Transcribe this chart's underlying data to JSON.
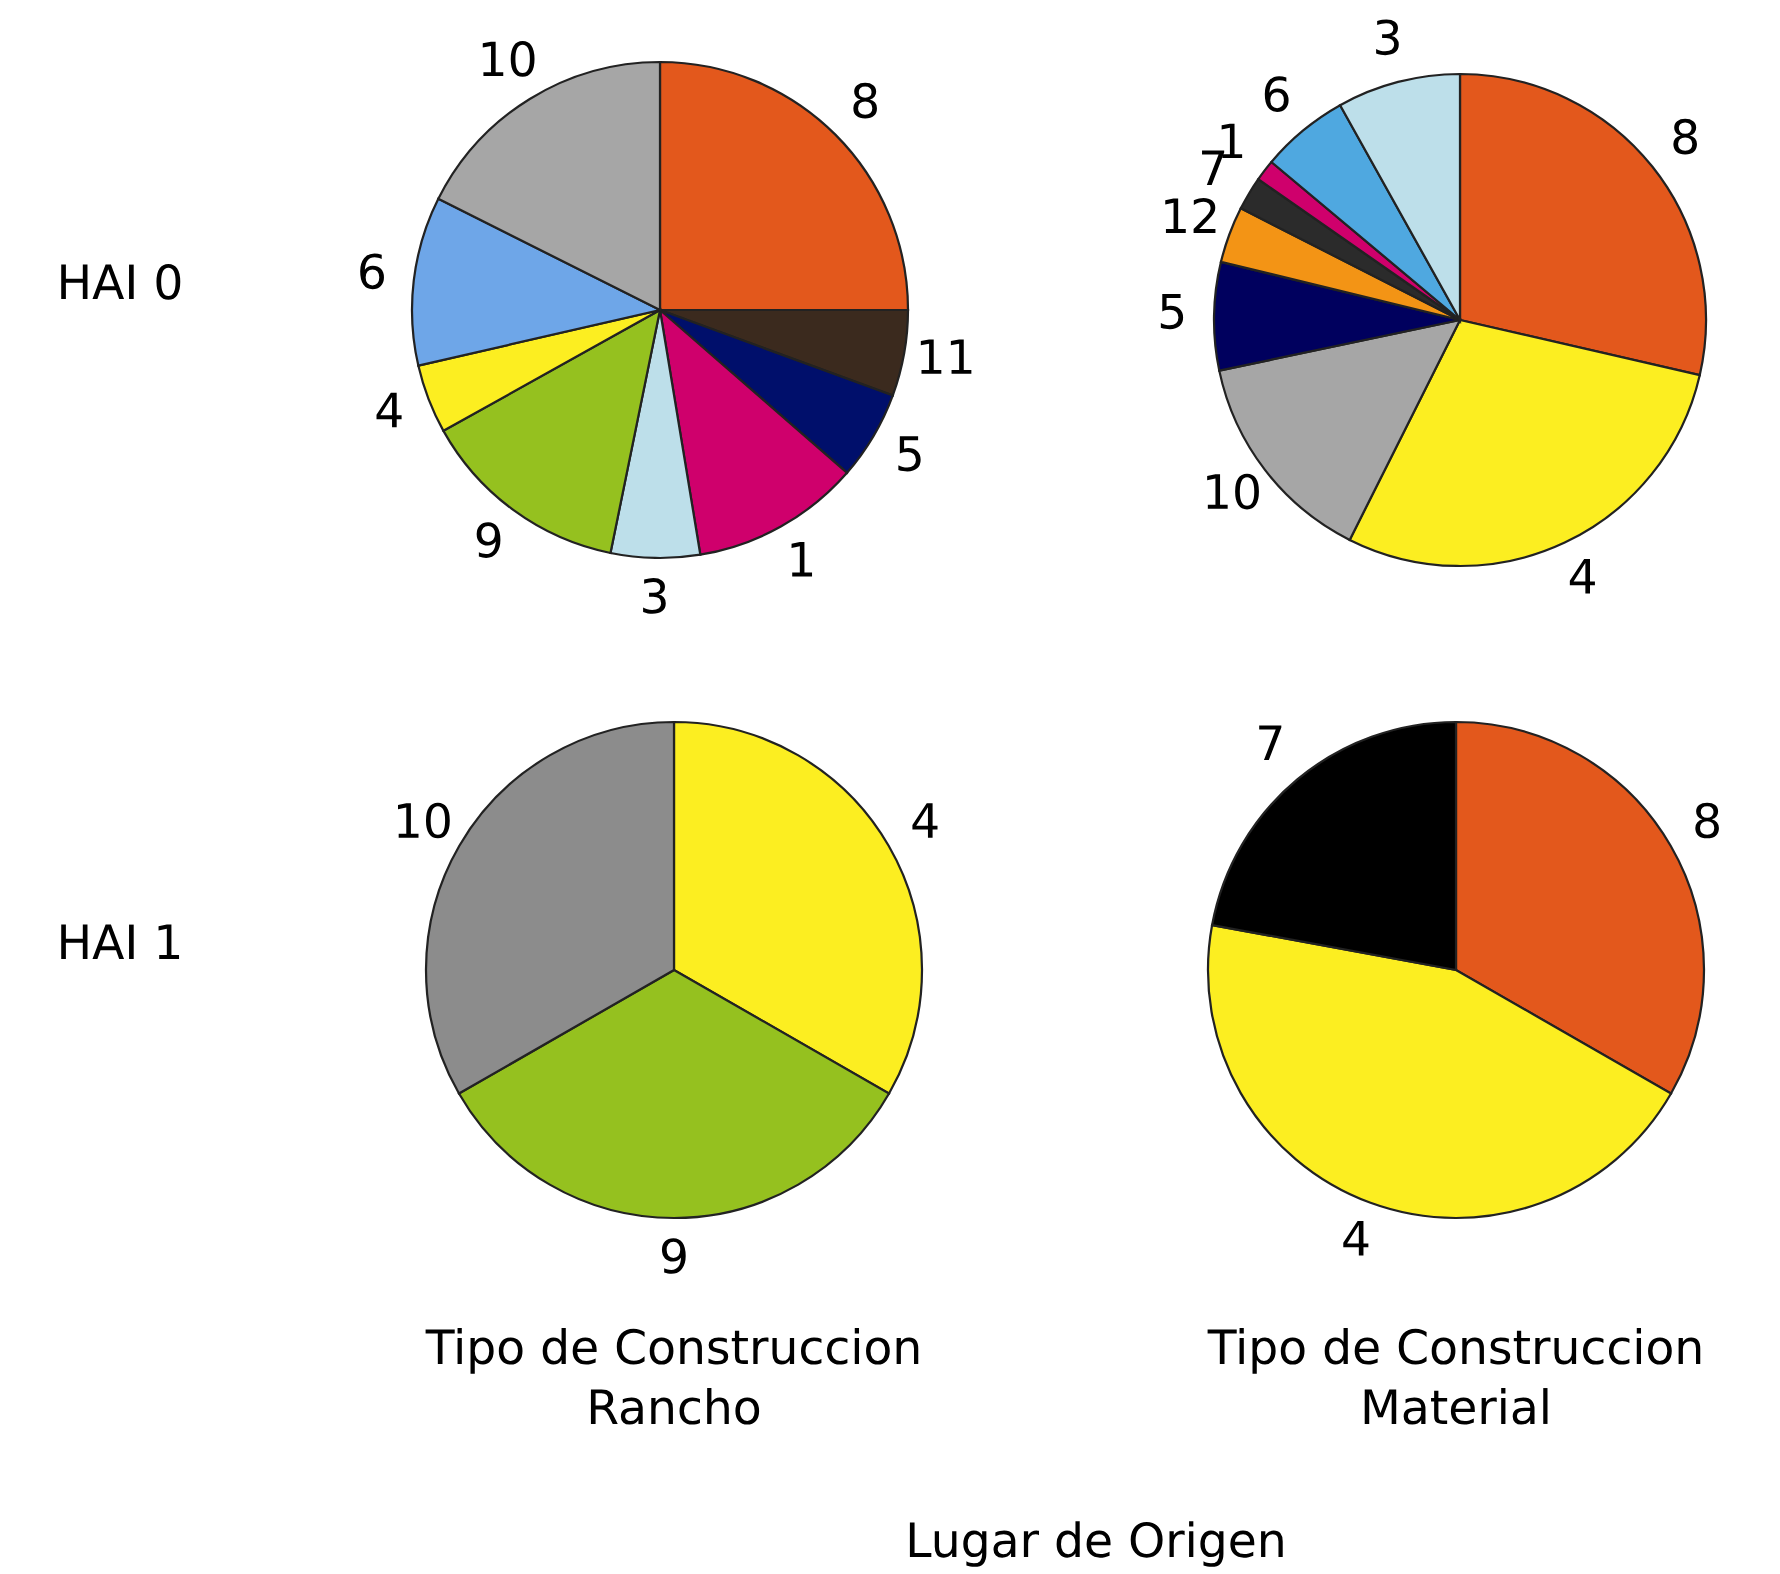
{
  "chart_data": [
    {
      "type": "pie",
      "categories": [
        "8",
        "11",
        "5",
        "1",
        "3",
        "9",
        "4",
        "6",
        "10"
      ],
      "values": [
        25,
        5.6,
        5.8,
        11,
        5.8,
        13.7,
        4.5,
        11,
        17.6
      ],
      "colors": [
        "#e3581c",
        "#3b2a1e",
        "#000f6b",
        "#cf006c",
        "#bddfea",
        "#95c11f",
        "#fcee21",
        "#6ea6e8",
        "#a6a6a6"
      ],
      "annotations": [
        "HAI 0"
      ]
    },
    {
      "type": "pie",
      "categories": [
        "8",
        "4",
        "10",
        "5",
        "12",
        "7",
        "1",
        "6",
        "3"
      ],
      "values": [
        28.6,
        28.8,
        14.3,
        7.1,
        3.7,
        2.2,
        1.4,
        5.8,
        8.1
      ],
      "colors": [
        "#e3581c",
        "#fcee21",
        "#a6a6a6",
        "#00005e",
        "#f39415",
        "#2b2b2b",
        "#cf006c",
        "#4fa8e0",
        "#bddfea"
      ]
    },
    {
      "type": "pie",
      "categories": [
        "4",
        "9",
        "10"
      ],
      "values": [
        33.3,
        33.4,
        33.3
      ],
      "colors": [
        "#fcee21",
        "#95c11f",
        "#8c8c8c"
      ],
      "xlabel": "Tipo de Construccion\nRancho",
      "annotations": [
        "HAI 1"
      ]
    },
    {
      "type": "pie",
      "categories": [
        "8",
        "4",
        "7"
      ],
      "values": [
        33.3,
        44.6,
        22.1
      ],
      "colors": [
        "#e3581c",
        "#fcee21",
        "#000000"
      ],
      "xlabel": "Tipo de Construccion\nMaterial",
      "annotations": [
        "Lugar de Origen"
      ]
    }
  ]
}
